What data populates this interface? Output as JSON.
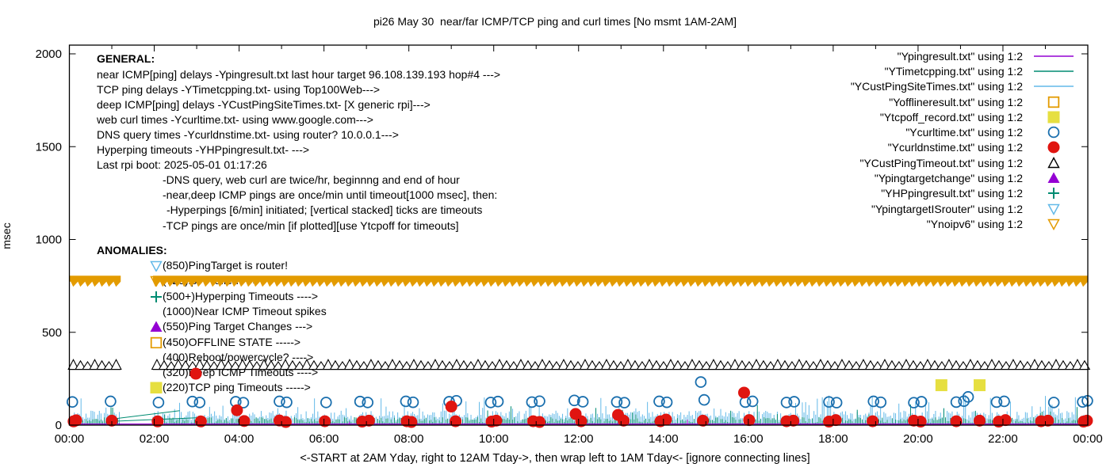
{
  "title": "pi26 May 30  near/far ICMP/TCP ping and curl times [No msmt 1AM-2AM]",
  "axes": {
    "ylabel": "msec",
    "xcaption": "<-START at 2AM Yday, right to 12AM Tday->, then wrap left to 1AM Tday<- [ignore connecting lines]",
    "y_ticks": [
      0,
      500,
      1000,
      1500,
      2000
    ],
    "x_tick_labels": [
      "00:00",
      "02:00",
      "04:00",
      "06:00",
      "08:00",
      "10:00",
      "12:00",
      "14:00",
      "16:00",
      "18:00",
      "20:00",
      "22:00",
      "00:00"
    ]
  },
  "general": {
    "heading": "GENERAL:",
    "lines": [
      {
        "text": "near ICMP[ping] delays -Ypingresult.txt last hour target 96.108.139.193 hop#4 --->",
        "indent": 0
      },
      {
        "text": "TCP ping delays -YTimetcpping.txt- using Top100Web--->",
        "indent": 0
      },
      {
        "text": "deep ICMP[ping] delays -YCustPingSiteTimes.txt- [X generic rpi]--->",
        "indent": 0
      },
      {
        "text": "web curl times -Ycurltime.txt- using www.google.com--->",
        "indent": 0
      },
      {
        "text": "DNS query times -Ycurldnstime.txt- using router? 10.0.0.1--->",
        "indent": 0
      },
      {
        "text": "Hyperping timeouts -YHPpingresult.txt- --->",
        "indent": 0
      },
      {
        "text": "Last rpi boot: 2025-05-01 01:17:26",
        "indent": 0
      },
      {
        "text": "-DNS query, web curl are twice/hr, beginnng and end of hour",
        "indent": 1
      },
      {
        "text": "-near,deep ICMP pings are once/min until timeout[1000 msec], then:",
        "indent": 1
      },
      {
        "text": "-Hyperpings [6/min] initiated; [vertical stacked] ticks are timeouts",
        "indent": 2
      },
      {
        "text": "-TCP pings are once/min [if plotted][use Ytcpoff for timeouts]",
        "indent": 1
      }
    ]
  },
  "anomalies": {
    "heading": "ANOMALIES:",
    "lines": [
      {
        "marker": "tri-down-open",
        "color": "#63B9E8",
        "text": "(850)PingTarget is router!"
      },
      {
        "marker": "tri-down-open",
        "color": "#E39B00",
        "text": "(725)ipv6 failed --->"
      },
      {
        "marker": "plus",
        "color": "#008C72",
        "text": "(500+)Hyperping Timeouts ---->"
      },
      {
        "marker": "none",
        "color": "",
        "text": "(1000)Near ICMP Timeout spikes"
      },
      {
        "marker": "tri-up-filled",
        "color": "#9400D3",
        "text": "(550)Ping Target Changes --->"
      },
      {
        "marker": "square-open",
        "color": "#E39B00",
        "text": "(450)OFFLINE STATE ----->"
      },
      {
        "marker": "none",
        "color": "",
        "text": "(400)Reboot/powercycle? ---->"
      },
      {
        "marker": "none",
        "color": "",
        "text": "(320)Deep ICMP Timeouts ---->"
      },
      {
        "marker": "square-filled",
        "color": "#E6DF40",
        "text": "(220)TCP ping Timeouts ----->"
      }
    ]
  },
  "chart_data": {
    "type": "scatter",
    "title": "pi26 May 30  near/far ICMP/TCP ping and curl times [No msmt 1AM-2AM]",
    "xlabel": "<-START at 2AM Yday, right to 12AM Tday->, then wrap left to 1AM Tday<- [ignore connecting lines]",
    "ylabel": "msec",
    "ylim": [
      0,
      2000
    ],
    "x_range_hours": [
      0,
      24
    ],
    "grid": false,
    "legend_position": "top-right-inside",
    "measurement_gap_hours": [
      1.21,
      1.97
    ],
    "noise_segments": [
      [
        0,
        1.21
      ],
      [
        1.97,
        24
      ]
    ],
    "series": [
      {
        "label": "\"Ypingresult.txt\" using 1:2",
        "color": "#9400D3",
        "symbol": "line",
        "style": "flat-line",
        "baseline_msec": 6,
        "tick_noise": {
          "prob": 0.012,
          "min": 10,
          "max": 38
        }
      },
      {
        "label": "\"YTimetcpping.txt\" using 1:2",
        "color": "#008C72",
        "symbol": "line",
        "style": "noise-band",
        "noise": {
          "base": 9,
          "amp": 34,
          "spike_prob": 0.06,
          "spike_min": 55,
          "spike_max": 115
        },
        "connect_lines": [
          [
            0.98,
            32,
            2.6,
            78
          ],
          [
            0.98,
            20,
            3.05,
            40
          ]
        ]
      },
      {
        "label": "\"YCustPingSiteTimes.txt\" using 1:2",
        "color": "#63B9E8",
        "symbol": "line",
        "style": "noise-band",
        "noise": {
          "base": 26,
          "amp": 52,
          "spike_prob": 0.08,
          "spike_min": 85,
          "spike_max": 160
        },
        "extra_spikes": {
          "from": 21.02,
          "to": 21.3,
          "prob": 0.45,
          "min": 150,
          "max": 205
        }
      },
      {
        "label": "\"Yofflineresult.txt\" using 1:2",
        "color": "#E39B00",
        "symbol": "square-open",
        "points": []
      },
      {
        "label": "\"Ytcpoff_record.txt\" using 1:2",
        "color": "#E6DF40",
        "symbol": "square-filled",
        "points": [
          [
            20.55,
            215
          ],
          [
            21.45,
            215
          ]
        ]
      },
      {
        "label": "\"Ycurltime.txt\" using 1:2",
        "color": "#1A6FAE",
        "symbol": "circle-open",
        "points": [
          [
            0.07,
            125
          ],
          [
            0.97,
            128
          ],
          [
            2.1,
            122
          ],
          [
            2.9,
            127
          ],
          [
            3.07,
            122
          ],
          [
            3.92,
            126
          ],
          [
            4.1,
            121
          ],
          [
            4.95,
            128
          ],
          [
            5.12,
            123
          ],
          [
            6.05,
            122
          ],
          [
            6.85,
            127
          ],
          [
            7.03,
            122
          ],
          [
            7.93,
            128
          ],
          [
            8.1,
            123
          ],
          [
            8.95,
            126
          ],
          [
            9.12,
            131
          ],
          [
            9.93,
            122
          ],
          [
            10.1,
            127
          ],
          [
            10.9,
            124
          ],
          [
            11.08,
            129
          ],
          [
            11.9,
            133
          ],
          [
            12.1,
            126
          ],
          [
            12.9,
            125
          ],
          [
            13.08,
            121
          ],
          [
            13.9,
            128
          ],
          [
            14.08,
            123
          ],
          [
            14.88,
            232
          ],
          [
            14.96,
            136
          ],
          [
            15.93,
            124
          ],
          [
            16.1,
            128
          ],
          [
            16.9,
            122
          ],
          [
            17.08,
            126
          ],
          [
            17.9,
            125
          ],
          [
            18.08,
            121
          ],
          [
            18.95,
            128
          ],
          [
            19.12,
            123
          ],
          [
            19.9,
            121
          ],
          [
            20.08,
            126
          ],
          [
            20.9,
            124
          ],
          [
            21.08,
            129
          ],
          [
            21.18,
            152
          ],
          [
            21.85,
            124
          ],
          [
            22.03,
            128
          ],
          [
            23.2,
            122
          ],
          [
            23.88,
            125
          ],
          [
            23.99,
            131
          ]
        ]
      },
      {
        "label": "\"Ycurldnstime.txt\" using 1:2",
        "color": "#E01510",
        "symbol": "circle-filled",
        "points": [
          [
            0.1,
            20
          ],
          [
            0.16,
            26
          ],
          [
            1.0,
            24
          ],
          [
            2.08,
            20
          ],
          [
            2.98,
            277
          ],
          [
            3.1,
            20
          ],
          [
            3.95,
            80
          ],
          [
            4.12,
            22
          ],
          [
            4.95,
            25
          ],
          [
            5.1,
            17
          ],
          [
            6.02,
            21
          ],
          [
            6.9,
            19
          ],
          [
            7.06,
            24
          ],
          [
            7.95,
            21
          ],
          [
            8.06,
            17
          ],
          [
            9.0,
            100
          ],
          [
            9.1,
            21
          ],
          [
            9.95,
            19
          ],
          [
            10.06,
            24
          ],
          [
            10.93,
            21
          ],
          [
            11.08,
            17
          ],
          [
            11.93,
            60
          ],
          [
            12.06,
            21
          ],
          [
            12.93,
            55
          ],
          [
            13.06,
            24
          ],
          [
            13.93,
            21
          ],
          [
            14.06,
            30
          ],
          [
            14.93,
            24
          ],
          [
            15.9,
            175
          ],
          [
            16.02,
            27
          ],
          [
            16.9,
            21
          ],
          [
            17.06,
            24
          ],
          [
            17.9,
            19
          ],
          [
            18.06,
            27
          ],
          [
            18.93,
            21
          ],
          [
            19.9,
            24
          ],
          [
            20.06,
            19
          ],
          [
            20.9,
            21
          ],
          [
            21.45,
            24
          ],
          [
            21.9,
            19
          ],
          [
            22.06,
            27
          ],
          [
            22.9,
            21
          ],
          [
            23.06,
            24
          ],
          [
            23.9,
            19
          ],
          [
            23.98,
            24
          ]
        ]
      },
      {
        "label": "\"YCustPingTimeout.txt\" using 1:2",
        "color": "#000000",
        "symbol": "tri-up-open",
        "style": "triangle-row",
        "band_value_msec": 310,
        "segments": [
          [
            0,
            1.21
          ],
          [
            1.97,
            24
          ]
        ]
      },
      {
        "label": "\"Ypingtargetchange\" using 1:2",
        "color": "#9400D3",
        "symbol": "tri-up-filled",
        "points": []
      },
      {
        "label": "\"YHPpingresult.txt\" using 1:2",
        "color": "#008C72",
        "symbol": "plus",
        "points": []
      },
      {
        "label": "\"YpingtargetISrouter\" using 1:2",
        "color": "#63B9E8",
        "symbol": "tri-down-open",
        "points": []
      },
      {
        "label": "\"Ynoipv6\" using 1:2",
        "color": "#E39B00",
        "symbol": "tri-down-open",
        "style": "solid-serrated-band",
        "band_top_msec": 805,
        "band_bottom_msec": 745,
        "segments": [
          [
            0,
            1.21
          ],
          [
            1.97,
            24
          ]
        ]
      }
    ]
  }
}
